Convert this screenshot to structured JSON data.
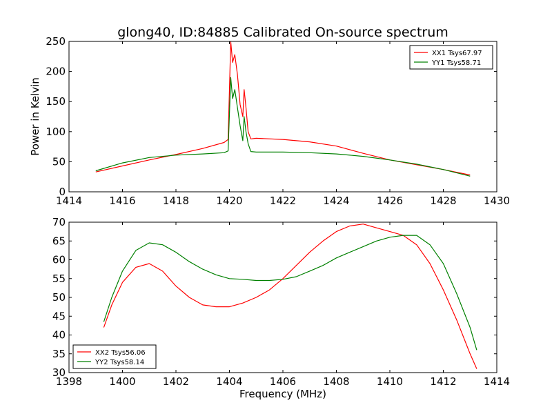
{
  "page": {
    "title": "glong40, ID:84885 Calibrated On-source spectrum"
  },
  "colors": {
    "red": "#ff0000",
    "green": "#008000"
  },
  "chart_data": [
    {
      "type": "line",
      "title": "glong40, ID:84885 Calibrated On-source spectrum",
      "xlabel": "",
      "ylabel": "Power in Kelvin",
      "xlim": [
        1414,
        1430
      ],
      "ylim": [
        0,
        250
      ],
      "xticks": [
        "1414",
        "1416",
        "1418",
        "1420",
        "1422",
        "1424",
        "1426",
        "1428",
        "1430"
      ],
      "yticks": [
        "0",
        "50",
        "100",
        "150",
        "200",
        "250"
      ],
      "legend_position": "top-right",
      "series": [
        {
          "name": "XX1 Tsys67.97",
          "color": "#ff0000",
          "x": [
            1415.0,
            1416.0,
            1417.0,
            1418.0,
            1419.0,
            1419.8,
            1419.95,
            1420.05,
            1420.12,
            1420.2,
            1420.3,
            1420.4,
            1420.5,
            1420.55,
            1420.62,
            1420.7,
            1420.8,
            1421.0,
            1422.0,
            1423.0,
            1424.0,
            1425.0,
            1426.0,
            1427.0,
            1428.0,
            1429.0
          ],
          "values": [
            33,
            43,
            53,
            62,
            72,
            82,
            87,
            250,
            215,
            228,
            195,
            145,
            125,
            170,
            140,
            100,
            88,
            89,
            87,
            83,
            76,
            64,
            53,
            45,
            37,
            28
          ]
        },
        {
          "name": "YY1 Tsys58.71",
          "color": "#008000",
          "x": [
            1415.0,
            1416.0,
            1417.0,
            1418.0,
            1419.0,
            1419.8,
            1419.95,
            1420.05,
            1420.12,
            1420.2,
            1420.3,
            1420.4,
            1420.5,
            1420.55,
            1420.62,
            1420.7,
            1420.8,
            1421.0,
            1422.0,
            1423.0,
            1424.0,
            1425.0,
            1426.0,
            1427.0,
            1428.0,
            1429.0
          ],
          "values": [
            35,
            48,
            57,
            61,
            63,
            65,
            68,
            190,
            155,
            170,
            140,
            110,
            85,
            125,
            100,
            80,
            67,
            66,
            66,
            65,
            63,
            59,
            53,
            46,
            37,
            26
          ]
        }
      ]
    },
    {
      "type": "line",
      "title": "",
      "xlabel": "Frequency (MHz)",
      "ylabel": "",
      "xlim": [
        1398,
        1414
      ],
      "ylim": [
        30,
        70
      ],
      "xticks": [
        "1398",
        "1400",
        "1402",
        "1404",
        "1406",
        "1408",
        "1410",
        "1412",
        "1414"
      ],
      "yticks": [
        "30",
        "35",
        "40",
        "45",
        "50",
        "55",
        "60",
        "65",
        "70"
      ],
      "legend_position": "bottom-left",
      "series": [
        {
          "name": "XX2 Tsys56.06",
          "color": "#ff0000",
          "x": [
            1399.3,
            1399.6,
            1400.0,
            1400.5,
            1401.0,
            1401.5,
            1402.0,
            1402.5,
            1403.0,
            1403.5,
            1404.0,
            1404.5,
            1405.0,
            1405.5,
            1406.0,
            1406.5,
            1407.0,
            1407.5,
            1408.0,
            1408.5,
            1409.0,
            1409.5,
            1410.0,
            1410.5,
            1411.0,
            1411.5,
            1412.0,
            1412.5,
            1413.0,
            1413.25
          ],
          "values": [
            42,
            48,
            54,
            58,
            59,
            57,
            53,
            50,
            48,
            47.5,
            47.5,
            48.5,
            50,
            52,
            55,
            58.5,
            62,
            65,
            67.5,
            69,
            69.5,
            68.5,
            67.5,
            66.5,
            64,
            59,
            52,
            44,
            35,
            31
          ]
        },
        {
          "name": "YY2 Tsys58.14",
          "color": "#008000",
          "x": [
            1399.3,
            1399.6,
            1400.0,
            1400.5,
            1401.0,
            1401.5,
            1402.0,
            1402.5,
            1403.0,
            1403.5,
            1404.0,
            1404.5,
            1405.0,
            1405.5,
            1406.0,
            1406.5,
            1407.0,
            1407.5,
            1408.0,
            1408.5,
            1409.0,
            1409.5,
            1410.0,
            1410.5,
            1411.0,
            1411.5,
            1412.0,
            1412.5,
            1413.0,
            1413.25
          ],
          "values": [
            43.5,
            50,
            57,
            62.5,
            64.5,
            64,
            62,
            59.5,
            57.5,
            56,
            55,
            54.8,
            54.5,
            54.5,
            54.8,
            55.5,
            57,
            58.5,
            60.5,
            62,
            63.5,
            65,
            66,
            66.5,
            66.5,
            64,
            59,
            51,
            42,
            36
          ]
        }
      ]
    }
  ]
}
